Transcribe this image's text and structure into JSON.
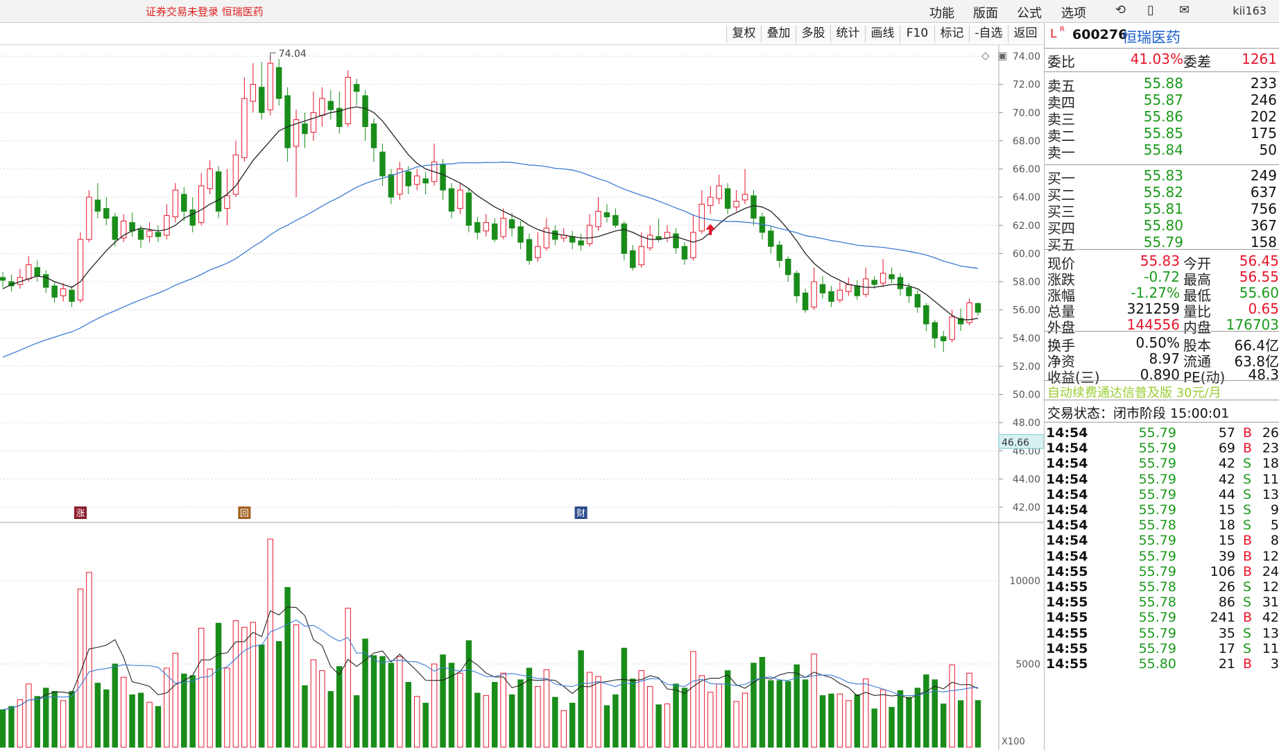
{
  "topbar": {
    "status": "证券交易未登录  恒瑞医药",
    "menus": [
      "功能",
      "版面",
      "公式",
      "选项"
    ],
    "icons": [
      "refresh-icon",
      "phone-icon",
      "mail-icon"
    ],
    "user": "kii163"
  },
  "toolbar": {
    "buttons": [
      "复权",
      "叠加",
      "多股",
      "统计",
      "画线",
      "F10",
      "标记",
      "-自选",
      "返回"
    ]
  },
  "chart": {
    "max_label": "74.04",
    "price_ticks": [
      "74.00",
      "72.00",
      "70.00",
      "68.00",
      "66.00",
      "64.00",
      "62.00",
      "60.00",
      "58.00",
      "56.00",
      "54.00",
      "52.00",
      "50.00",
      "48.00",
      "46.00",
      "44.00",
      "42.00"
    ],
    "cursor_price": "46.66",
    "vol_ticks": [
      "10000",
      "5000"
    ],
    "vol_unit": "X100",
    "markers": [
      "涨",
      "回",
      "财"
    ]
  },
  "chart_data": {
    "type": "candlestick",
    "ylim": [
      41,
      75
    ],
    "candles": [
      [
        58.3,
        58.1,
        58.7,
        57.6
      ],
      [
        58.0,
        57.7,
        58.5,
        57.3
      ],
      [
        57.8,
        58.3,
        58.9,
        57.5
      ],
      [
        58.2,
        59.2,
        59.8,
        58.0
      ],
      [
        59.0,
        58.4,
        59.5,
        58.0
      ],
      [
        58.5,
        57.6,
        58.8,
        57.2
      ],
      [
        57.7,
        56.9,
        58.0,
        56.5
      ],
      [
        57.0,
        57.5,
        57.9,
        56.6
      ],
      [
        57.4,
        56.6,
        57.7,
        56.2
      ],
      [
        56.7,
        61.0,
        61.5,
        56.5
      ],
      [
        61.0,
        64.0,
        64.5,
        60.8
      ],
      [
        63.8,
        63.0,
        65.0,
        62.5
      ],
      [
        63.2,
        62.5,
        64.0,
        62.0
      ],
      [
        62.6,
        61.0,
        62.9,
        60.5
      ],
      [
        61.1,
        62.3,
        62.8,
        60.8
      ],
      [
        62.2,
        61.6,
        62.9,
        61.2
      ],
      [
        61.7,
        61.0,
        62.0,
        60.4
      ],
      [
        61.2,
        61.6,
        62.2,
        60.8
      ],
      [
        61.5,
        61.2,
        62.0,
        60.8
      ],
      [
        61.3,
        62.7,
        63.5,
        61.0
      ],
      [
        62.6,
        64.5,
        65.0,
        62.2
      ],
      [
        64.2,
        63.0,
        64.7,
        62.3
      ],
      [
        63.1,
        62.0,
        64.0,
        61.5
      ],
      [
        62.2,
        64.8,
        65.7,
        62.0
      ],
      [
        64.6,
        66.0,
        66.6,
        64.2
      ],
      [
        65.8,
        63.0,
        66.2,
        62.5
      ],
      [
        63.2,
        64.1,
        66.0,
        62.0
      ],
      [
        64.2,
        67.0,
        68.0,
        64.0
      ],
      [
        66.8,
        71.0,
        72.5,
        66.5
      ],
      [
        70.8,
        72.0,
        73.5,
        70.0
      ],
      [
        71.8,
        70.0,
        73.6,
        69.5
      ],
      [
        70.2,
        73.5,
        74.04,
        69.8
      ],
      [
        73.2,
        71.0,
        73.8,
        70.5
      ],
      [
        71.2,
        67.5,
        71.8,
        66.5
      ],
      [
        67.6,
        69.5,
        70.2,
        64.0
      ],
      [
        69.2,
        68.5,
        70.0,
        67.5
      ],
      [
        68.6,
        70.0,
        71.5,
        68.0
      ],
      [
        69.8,
        71.0,
        71.8,
        69.0
      ],
      [
        70.8,
        70.2,
        71.6,
        69.5
      ],
      [
        70.3,
        69.0,
        71.5,
        68.5
      ],
      [
        69.2,
        72.5,
        73.0,
        69.0
      ],
      [
        72.0,
        71.5,
        72.4,
        70.5
      ],
      [
        71.2,
        69.0,
        71.6,
        68.0
      ],
      [
        69.2,
        67.5,
        69.6,
        66.5
      ],
      [
        67.2,
        65.5,
        67.8,
        64.8
      ],
      [
        65.6,
        64.0,
        66.0,
        63.5
      ],
      [
        64.2,
        66.0,
        66.5,
        63.8
      ],
      [
        65.8,
        64.8,
        66.2,
        64.2
      ],
      [
        64.9,
        65.5,
        66.0,
        64.5
      ],
      [
        65.3,
        65.0,
        65.8,
        64.2
      ],
      [
        65.1,
        66.5,
        67.8,
        64.8
      ],
      [
        66.3,
        64.5,
        66.7,
        63.8
      ],
      [
        64.6,
        63.0,
        65.0,
        62.5
      ],
      [
        63.2,
        64.5,
        65.0,
        62.8
      ],
      [
        64.3,
        62.0,
        64.6,
        61.5
      ],
      [
        62.2,
        61.5,
        62.6,
        61.0
      ],
      [
        61.6,
        62.2,
        62.8,
        61.2
      ],
      [
        62.1,
        61.0,
        62.5,
        60.8
      ],
      [
        61.2,
        62.5,
        63.2,
        61.0
      ],
      [
        62.4,
        61.8,
        62.9,
        61.2
      ],
      [
        61.9,
        60.8,
        62.3,
        60.3
      ],
      [
        61.0,
        59.5,
        61.4,
        59.2
      ],
      [
        59.7,
        60.5,
        61.5,
        59.4
      ],
      [
        60.4,
        61.8,
        62.5,
        60.2
      ],
      [
        61.6,
        61.0,
        62.0,
        60.6
      ],
      [
        61.1,
        61.3,
        61.8,
        60.8
      ],
      [
        61.2,
        60.8,
        61.6,
        60.3
      ],
      [
        60.9,
        60.6,
        61.4,
        60.2
      ],
      [
        60.7,
        62.0,
        62.8,
        60.5
      ],
      [
        61.9,
        63.0,
        64.0,
        61.6
      ],
      [
        62.9,
        62.6,
        63.5,
        62.2
      ],
      [
        62.7,
        62.0,
        63.2,
        61.8
      ],
      [
        62.1,
        60.0,
        62.3,
        59.5
      ],
      [
        60.2,
        59.0,
        60.6,
        58.8
      ],
      [
        59.2,
        60.5,
        61.5,
        59.0
      ],
      [
        60.4,
        61.3,
        62.0,
        60.2
      ],
      [
        61.2,
        61.0,
        62.5,
        60.8
      ],
      [
        61.1,
        61.5,
        62.0,
        60.8
      ],
      [
        61.4,
        60.4,
        61.8,
        60.0
      ],
      [
        60.5,
        59.6,
        60.8,
        59.2
      ],
      [
        59.7,
        61.5,
        62.8,
        59.5
      ],
      [
        61.6,
        63.5,
        64.5,
        61.4
      ],
      [
        63.4,
        64.0,
        64.8,
        62.8
      ],
      [
        63.9,
        64.8,
        65.6,
        63.5
      ],
      [
        64.6,
        63.2,
        65.0,
        62.8
      ],
      [
        63.3,
        63.7,
        64.5,
        63.0
      ],
      [
        63.8,
        64.2,
        66.0,
        63.5
      ],
      [
        64.1,
        62.5,
        64.5,
        62.0
      ],
      [
        62.6,
        61.5,
        62.9,
        61.0
      ],
      [
        61.6,
        60.5,
        61.9,
        60.0
      ],
      [
        60.6,
        59.5,
        60.9,
        59.0
      ],
      [
        59.6,
        58.5,
        59.8,
        58.0
      ],
      [
        58.6,
        57.0,
        58.8,
        56.5
      ],
      [
        57.2,
        56.0,
        57.5,
        55.8
      ],
      [
        56.2,
        58.0,
        59.0,
        56.0
      ],
      [
        57.8,
        57.2,
        58.4,
        56.8
      ],
      [
        57.3,
        56.6,
        57.7,
        56.2
      ],
      [
        56.7,
        57.4,
        58.0,
        56.5
      ],
      [
        57.3,
        57.8,
        58.3,
        57.0
      ],
      [
        57.7,
        57.0,
        58.1,
        56.7
      ],
      [
        57.1,
        58.2,
        59.0,
        56.9
      ],
      [
        58.1,
        57.8,
        58.4,
        57.5
      ],
      [
        57.9,
        58.6,
        59.6,
        57.6
      ],
      [
        58.5,
        58.2,
        59.0,
        57.9
      ],
      [
        58.3,
        57.5,
        58.6,
        57.0
      ],
      [
        57.6,
        57.0,
        57.9,
        56.5
      ],
      [
        57.1,
        56.2,
        57.4,
        55.8
      ],
      [
        56.3,
        55.0,
        56.5,
        54.5
      ],
      [
        55.1,
        54.0,
        55.3,
        53.3
      ],
      [
        54.1,
        53.8,
        54.5,
        53.0
      ],
      [
        53.9,
        55.5,
        56.0,
        53.7
      ],
      [
        55.4,
        55.0,
        56.1,
        54.5
      ],
      [
        55.1,
        56.5,
        56.8,
        54.9
      ],
      [
        56.45,
        55.83,
        56.55,
        55.6
      ]
    ],
    "ma_short": [
      57.5,
      57.8,
      58.0,
      58.2,
      58.4,
      58.3,
      58.0,
      57.8,
      57.6,
      58.0,
      58.8,
      59.5,
      60.2,
      60.8,
      61.3,
      61.6,
      61.8,
      61.7,
      61.6,
      61.7,
      62.0,
      62.5,
      62.8,
      63.1,
      63.5,
      63.8,
      64.2,
      64.8,
      65.7,
      66.6,
      67.3,
      68.0,
      68.7,
      69.0,
      69.2,
      69.4,
      69.6,
      69.8,
      70.0,
      70.1,
      70.3,
      70.4,
      70.3,
      70.0,
      69.4,
      68.6,
      67.8,
      67.0,
      66.4,
      66.0,
      65.8,
      65.6,
      65.3,
      65.0,
      64.6,
      64.1,
      63.7,
      63.3,
      63.0,
      62.7,
      62.4,
      62.0,
      61.7,
      61.5,
      61.4,
      61.3,
      61.2,
      61.1,
      61.1,
      61.2,
      61.4,
      61.6,
      61.7,
      61.5,
      61.2,
      61.0,
      61.0,
      61.1,
      61.2,
      61.0,
      60.8,
      61.0,
      61.5,
      62.1,
      62.6,
      62.9,
      63.2,
      63.4,
      63.3,
      63.0,
      62.4,
      61.7,
      60.9,
      60.0,
      59.3,
      58.8,
      58.4,
      58.1,
      57.8,
      57.7,
      57.6,
      57.6,
      57.7,
      57.8,
      57.8,
      57.7,
      57.5,
      57.1,
      56.6,
      56.1,
      55.6,
      55.3,
      55.3,
      55.4
    ]
  },
  "panel": {
    "header": {
      "prefix": "L",
      "code": "600276",
      "name": "恒瑞医药"
    },
    "weibi": {
      "label": "委比",
      "val": "41.03%",
      "label2": "委差",
      "val2": "1261"
    },
    "sell": [
      [
        "卖五",
        "55.88",
        "233"
      ],
      [
        "卖四",
        "55.87",
        "246"
      ],
      [
        "卖三",
        "55.86",
        "202"
      ],
      [
        "卖二",
        "55.85",
        "175"
      ],
      [
        "卖一",
        "55.84",
        "50"
      ]
    ],
    "buy": [
      [
        "买一",
        "55.83",
        "249"
      ],
      [
        "买二",
        "55.82",
        "637"
      ],
      [
        "买三",
        "55.81",
        "756"
      ],
      [
        "买四",
        "55.80",
        "367"
      ],
      [
        "买五",
        "55.79",
        "158"
      ]
    ],
    "stats": [
      [
        "现价",
        "55.83",
        "今开",
        "56.45"
      ],
      [
        "涨跌",
        "-0.72",
        "最高",
        "56.55"
      ],
      [
        "涨幅",
        "-1.27%",
        "最低",
        "55.60"
      ],
      [
        "总量",
        "321259",
        "量比",
        "0.65"
      ],
      [
        "外盘",
        "144556",
        "内盘",
        "176703"
      ]
    ],
    "stats2": [
      [
        "换手",
        "0.50%",
        "股本",
        "66.4亿"
      ],
      [
        "净资",
        "8.97",
        "流通",
        "63.8亿"
      ],
      [
        "收益(三)",
        "0.890",
        "PE(动)",
        "48.3"
      ]
    ],
    "ad": "自动续费通达信普及版  30元/月",
    "trade_status": "交易状态：闭市阶段 15:00:01",
    "ticks": [
      [
        "14:54",
        "55.79",
        "57",
        "B",
        "26"
      ],
      [
        "14:54",
        "55.79",
        "69",
        "B",
        "23"
      ],
      [
        "14:54",
        "55.79",
        "42",
        "S",
        "18"
      ],
      [
        "14:54",
        "55.79",
        "42",
        "S",
        "11"
      ],
      [
        "14:54",
        "55.79",
        "44",
        "S",
        "13"
      ],
      [
        "14:54",
        "55.79",
        "15",
        "S",
        "9"
      ],
      [
        "14:54",
        "55.78",
        "18",
        "S",
        "5"
      ],
      [
        "14:54",
        "55.79",
        "15",
        "B",
        "8"
      ],
      [
        "14:54",
        "55.79",
        "39",
        "B",
        "12"
      ],
      [
        "14:55",
        "55.79",
        "106",
        "B",
        "24"
      ],
      [
        "14:55",
        "55.78",
        "26",
        "S",
        "12"
      ],
      [
        "14:55",
        "55.78",
        "86",
        "S",
        "31"
      ],
      [
        "14:55",
        "55.79",
        "241",
        "B",
        "42"
      ],
      [
        "14:55",
        "55.79",
        "35",
        "S",
        "13"
      ],
      [
        "14:55",
        "55.79",
        "17",
        "S",
        "11"
      ],
      [
        "14:55",
        "55.80",
        "21",
        "B",
        "3"
      ]
    ]
  }
}
